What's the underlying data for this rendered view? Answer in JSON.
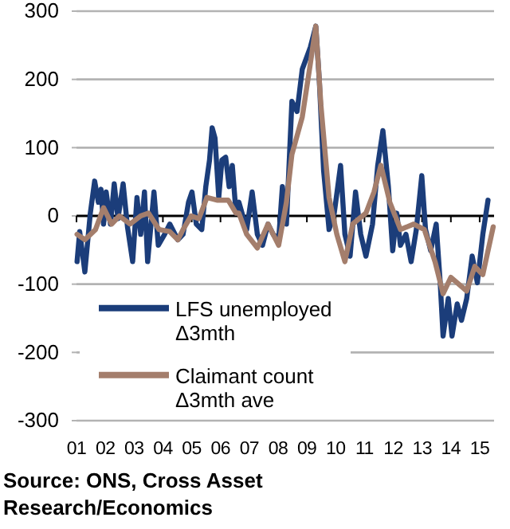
{
  "chart_data": {
    "type": "line",
    "xlim": [
      2001,
      2015.5
    ],
    "xticks": [
      {
        "value": 2001,
        "label": "01"
      },
      {
        "value": 2002,
        "label": "02"
      },
      {
        "value": 2003,
        "label": "03"
      },
      {
        "value": 2004,
        "label": "04"
      },
      {
        "value": 2005,
        "label": "05"
      },
      {
        "value": 2006,
        "label": "06"
      },
      {
        "value": 2007,
        "label": "07"
      },
      {
        "value": 2008,
        "label": "08"
      },
      {
        "value": 2009,
        "label": "09"
      },
      {
        "value": 2010,
        "label": "10"
      },
      {
        "value": 2011,
        "label": "11"
      },
      {
        "value": 2012,
        "label": "12"
      },
      {
        "value": 2013,
        "label": "13"
      },
      {
        "value": 2014,
        "label": "14"
      },
      {
        "value": 2015,
        "label": "15"
      }
    ],
    "ylim": [
      -300,
      300
    ],
    "yticks": [
      -300,
      -200,
      -100,
      0,
      100,
      200,
      300
    ],
    "grid": "y",
    "legend": "bottom left",
    "line_style": "solid",
    "marker": "none",
    "series": [
      {
        "name": "LFS unemployed Δ3mth",
        "color": "#1b3d7a",
        "x": [
          2001.02,
          2001.11,
          2001.29,
          2001.48,
          2001.63,
          2001.76,
          2001.85,
          2001.94,
          2002.03,
          2002.18,
          2002.31,
          2002.44,
          2002.62,
          2002.77,
          2002.95,
          2003.1,
          2003.23,
          2003.36,
          2003.47,
          2003.69,
          2003.84,
          2004.06,
          2004.24,
          2004.52,
          2004.7,
          2004.89,
          2005.01,
          2005.16,
          2005.35,
          2005.49,
          2005.62,
          2005.71,
          2005.81,
          2005.94,
          2006.05,
          2006.18,
          2006.3,
          2006.41,
          2006.54,
          2006.64,
          2006.91,
          2007.1,
          2007.28,
          2007.46,
          2007.65,
          2007.83,
          2008.02,
          2008.15,
          2008.29,
          2008.48,
          2008.66,
          2008.84,
          2009.12,
          2009.31,
          2009.43,
          2009.58,
          2009.77,
          2009.95,
          2010.17,
          2010.32,
          2010.5,
          2010.69,
          2010.87,
          2011.05,
          2011.28,
          2011.46,
          2011.64,
          2011.83,
          2011.98,
          2012.12,
          2012.25,
          2012.44,
          2012.62,
          2012.8,
          2012.99,
          2013.12,
          2013.3,
          2013.49,
          2013.63,
          2013.73,
          2013.91,
          2014.04,
          2014.22,
          2014.37,
          2014.55,
          2014.74,
          2014.92,
          2015.11,
          2015.29
        ],
        "values": [
          -67,
          -23,
          -82,
          4,
          51,
          20,
          39,
          -12,
          35,
          -12,
          47,
          -4,
          47,
          -16,
          -67,
          27,
          -27,
          35,
          -67,
          35,
          -43,
          -27,
          -12,
          -35,
          -27,
          20,
          35,
          -12,
          -20,
          43,
          82,
          129,
          114,
          27,
          82,
          86,
          43,
          74,
          4,
          20,
          -20,
          35,
          -27,
          -43,
          -12,
          -27,
          -35,
          43,
          -12,
          168,
          153,
          215,
          247,
          278,
          200,
          67,
          -20,
          4,
          74,
          -27,
          -59,
          35,
          -27,
          -59,
          -12,
          74,
          125,
          43,
          -51,
          4,
          -43,
          -27,
          -67,
          -20,
          59,
          -20,
          -51,
          -12,
          -98,
          -176,
          -121,
          -176,
          -129,
          -153,
          -121,
          -59,
          -98,
          -27,
          23
        ]
      },
      {
        "name": "Claimant count Δ3mth ave",
        "color": "#a47e6c",
        "x": [
          2001.02,
          2001.29,
          2001.66,
          2001.94,
          2002.22,
          2002.49,
          2002.86,
          2003.23,
          2003.5,
          2003.87,
          2004.24,
          2004.52,
          2004.7,
          2004.98,
          2005.25,
          2005.53,
          2005.9,
          2006.27,
          2006.54,
          2006.64,
          2006.91,
          2007.28,
          2007.65,
          2008.02,
          2008.29,
          2008.48,
          2008.84,
          2009.12,
          2009.31,
          2009.49,
          2009.77,
          2010.04,
          2010.32,
          2010.59,
          2011.05,
          2011.33,
          2011.57,
          2011.88,
          2012.25,
          2012.71,
          2013.08,
          2013.45,
          2013.73,
          2014.0,
          2014.55,
          2014.83,
          2015.11,
          2015.47
        ],
        "values": [
          -27,
          -35,
          -20,
          12,
          -12,
          0,
          -12,
          0,
          4,
          -20,
          -23,
          -35,
          -20,
          0,
          -4,
          27,
          23,
          23,
          4,
          4,
          -27,
          -47,
          -12,
          -43,
          20,
          90,
          145,
          223,
          278,
          161,
          27,
          -27,
          -67,
          -12,
          4,
          35,
          74,
          20,
          -20,
          -12,
          -20,
          -67,
          -114,
          -90,
          -110,
          -74,
          -86,
          -16
        ]
      }
    ],
    "annotations": [
      "Source: ONS, Cross Asset Research/Economics"
    ]
  }
}
